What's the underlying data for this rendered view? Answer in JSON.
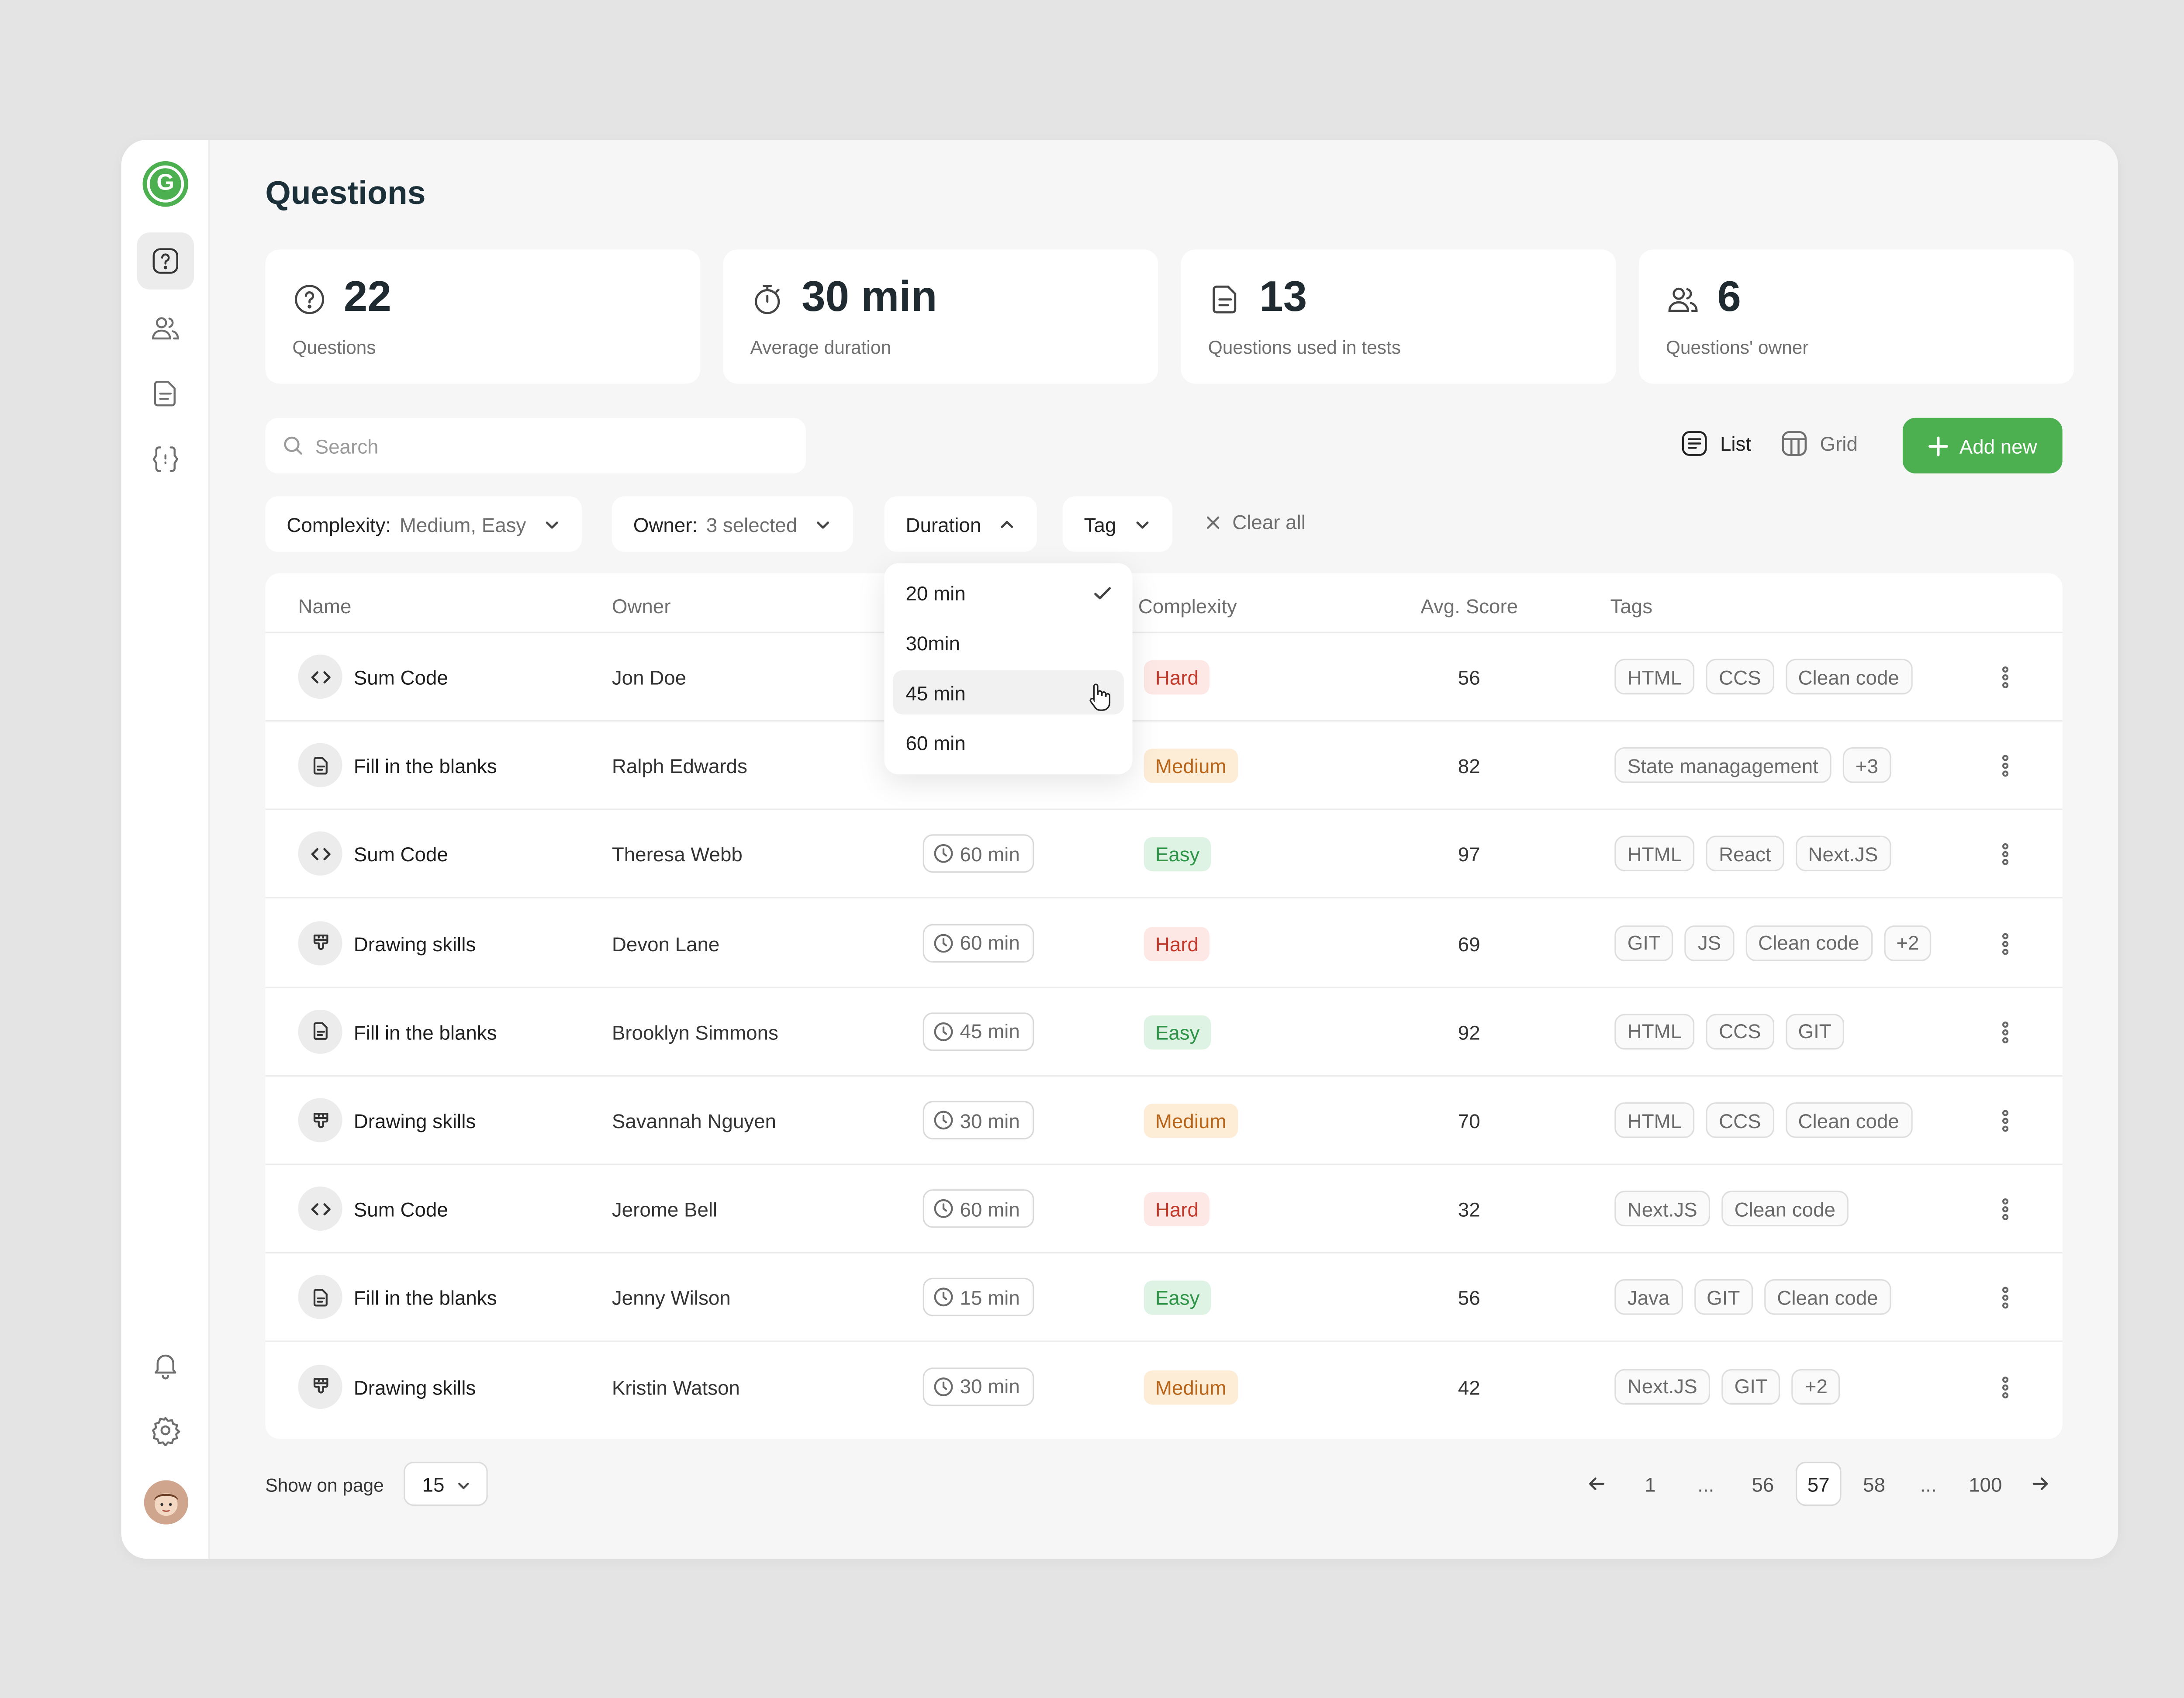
{
  "page": {
    "title": "Questions"
  },
  "stats": [
    {
      "icon": "question-circle-icon",
      "value": "22",
      "label": "Questions"
    },
    {
      "icon": "stopwatch-icon",
      "value": "30 min",
      "label": "Average duration"
    },
    {
      "icon": "document-icon",
      "value": "13",
      "label": "Questions used in tests"
    },
    {
      "icon": "users-icon",
      "value": "6",
      "label": "Questions' owner"
    }
  ],
  "search": {
    "placeholder": "Search",
    "value": ""
  },
  "view": {
    "list_label": "List",
    "grid_label": "Grid",
    "active": "list"
  },
  "add_new_label": "Add new",
  "filters": {
    "complexity": {
      "label": "Complexity:",
      "value": "Medium, Easy"
    },
    "owner": {
      "label": "Owner:",
      "value": "3 selected"
    },
    "duration": {
      "label": "Duration"
    },
    "tag": {
      "label": "Tag"
    },
    "clear_all": "Clear all"
  },
  "duration_dropdown": {
    "options": [
      {
        "label": "20 min",
        "checked": true
      },
      {
        "label": "30min",
        "checked": false
      },
      {
        "label": "45 min",
        "checked": false,
        "hovered": true
      },
      {
        "label": "60 min",
        "checked": false
      }
    ]
  },
  "table": {
    "columns": {
      "name": "Name",
      "owner": "Owner",
      "complexity": "Complexity",
      "score": "Avg. Score",
      "tags": "Tags"
    },
    "rows": [
      {
        "type": "code",
        "name": "Sum Code",
        "owner": "Jon Doe",
        "duration": "",
        "complexity": "Hard",
        "score": "56",
        "tags": [
          "HTML",
          "CCS",
          "Clean code"
        ]
      },
      {
        "type": "doc",
        "name": "Fill in the blanks",
        "owner": "Ralph Edwards",
        "duration": "",
        "complexity": "Medium",
        "score": "82",
        "tags": [
          "State managagement",
          "+3"
        ]
      },
      {
        "type": "code",
        "name": "Sum Code",
        "owner": "Theresa Webb",
        "duration": "60 min",
        "complexity": "Easy",
        "score": "97",
        "tags": [
          "HTML",
          "React",
          "Next.JS"
        ]
      },
      {
        "type": "draw",
        "name": "Drawing skills",
        "owner": "Devon Lane",
        "duration": "60 min",
        "complexity": "Hard",
        "score": "69",
        "tags": [
          "GIT",
          "JS",
          "Clean code",
          "+2"
        ]
      },
      {
        "type": "doc",
        "name": "Fill in the blanks",
        "owner": "Brooklyn Simmons",
        "duration": "45 min",
        "complexity": "Easy",
        "score": "92",
        "tags": [
          "HTML",
          "CCS",
          "GIT"
        ]
      },
      {
        "type": "draw",
        "name": "Drawing skills",
        "owner": "Savannah Nguyen",
        "duration": "30 min",
        "complexity": "Medium",
        "score": "70",
        "tags": [
          "HTML",
          "CCS",
          "Clean code"
        ]
      },
      {
        "type": "code",
        "name": "Sum Code",
        "owner": "Jerome Bell",
        "duration": "60 min",
        "complexity": "Hard",
        "score": "32",
        "tags": [
          "Next.JS",
          "Clean code"
        ]
      },
      {
        "type": "doc",
        "name": "Fill in the blanks",
        "owner": "Jenny Wilson",
        "duration": "15 min",
        "complexity": "Easy",
        "score": "56",
        "tags": [
          "Java",
          "GIT",
          "Clean code"
        ]
      },
      {
        "type": "draw",
        "name": "Drawing skills",
        "owner": "Kristin Watson",
        "duration": "30 min",
        "complexity": "Medium",
        "score": "42",
        "tags": [
          "Next.JS",
          "GIT",
          "+2"
        ]
      }
    ]
  },
  "footer": {
    "show_on_page_label": "Show on page",
    "page_size": "15",
    "pages": [
      "1",
      "...",
      "56",
      "57",
      "58",
      "...",
      "100"
    ],
    "current_page": "57"
  },
  "logo_letter": "G",
  "colors": {
    "accent": "#4caf50",
    "hard": "#c0392b",
    "medium": "#b8651a",
    "easy": "#2e9447"
  }
}
